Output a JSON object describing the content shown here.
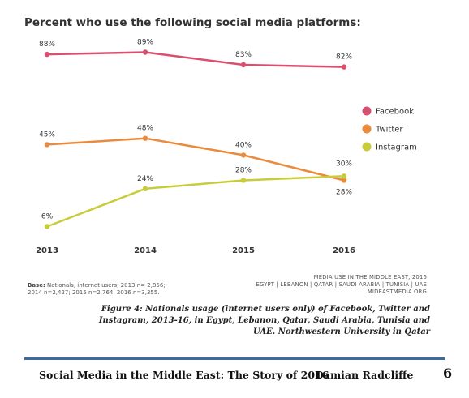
{
  "chart_data": {
    "type": "line",
    "title": "Percent who use the following social media platforms:",
    "categories": [
      "2013",
      "2014",
      "2015",
      "2016"
    ],
    "ylim": [
      0,
      100
    ],
    "grid": false,
    "legend_position": "right",
    "series": [
      {
        "name": "Facebook",
        "color": "#d94f6e",
        "values": [
          88,
          89,
          83,
          82
        ],
        "labels": [
          "88%",
          "89%",
          "83%",
          "82%"
        ]
      },
      {
        "name": "Twitter",
        "color": "#ea8a3c",
        "values": [
          45,
          48,
          40,
          28
        ],
        "labels": [
          "45%",
          "48%",
          "40%",
          "28%"
        ]
      },
      {
        "name": "Instagram",
        "color": "#c8cc3a",
        "values": [
          6,
          24,
          28,
          30
        ],
        "labels": [
          "6%",
          "24%",
          "28%",
          "30%"
        ]
      }
    ]
  },
  "notes": {
    "base_label": "Base:",
    "base_line1": "Nationals, internet users; 2013 n= 2,856;",
    "base_line2": "2014 n=2,427; 2015 n=2,764; 2016 n=3,355.",
    "source_line1": "MEDIA USE IN THE MIDDLE EAST, 2016",
    "source_line2": "EGYPT | LEBANON | QATAR | SAUDI ARABIA | TUNISIA | UAE",
    "source_line3": "MIDEASTMEDIA.ORG"
  },
  "caption": "Figure 4: Nationals usage (internet users only) of Facebook, Twitter and Instagram, 2013-16, in Egypt, Lebanon, Qatar, Saudi Arabia, Tunisia and UAE. Northwestern University in Qatar",
  "footer": {
    "title": "Social Media in the Middle East: The Story of 2016",
    "author": "Damian Radcliffe",
    "page_number": "6"
  }
}
